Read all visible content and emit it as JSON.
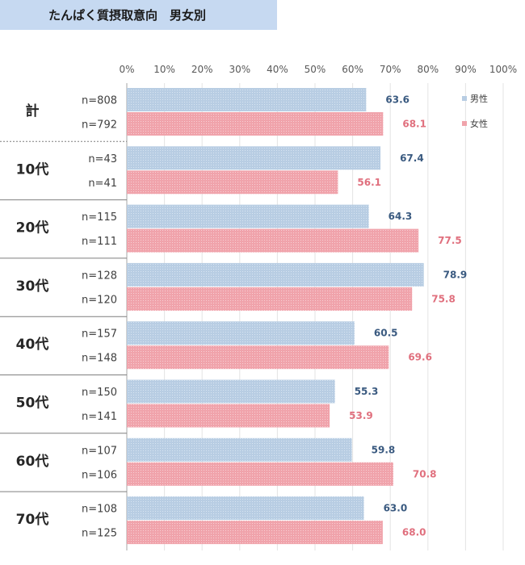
{
  "header": {
    "title": "たんぱく質摂取意向　男女別"
  },
  "chart_data": {
    "type": "bar",
    "orientation": "horizontal",
    "xlim": [
      0,
      100
    ],
    "ticks": [
      "0%",
      "10%",
      "20%",
      "30%",
      "40%",
      "50%",
      "60%",
      "70%",
      "80%",
      "90%",
      "100%"
    ],
    "grid": true,
    "legend_position": "top-right",
    "categories": [
      "計",
      "10代",
      "20代",
      "30代",
      "40代",
      "50代",
      "60代",
      "70代"
    ],
    "sample_sizes": {
      "男性": [
        "n=808",
        "n=43",
        "n=115",
        "n=128",
        "n=157",
        "n=150",
        "n=107",
        "n=108"
      ],
      "女性": [
        "n=792",
        "n=41",
        "n=111",
        "n=120",
        "n=148",
        "n=141",
        "n=106",
        "n=125"
      ]
    },
    "series": [
      {
        "name": "男性",
        "color": "#b8cde3",
        "label_color": "#3a5a80",
        "values": [
          63.6,
          67.4,
          64.3,
          78.9,
          60.5,
          55.3,
          59.8,
          63.0
        ],
        "labels": [
          "63.6",
          "67.4",
          "64.3",
          "78.9",
          "60.5",
          "55.3",
          "59.8",
          "63.0"
        ]
      },
      {
        "name": "女性",
        "color": "#f0a3ab",
        "label_color": "#e0707e",
        "values": [
          68.1,
          56.1,
          77.5,
          75.8,
          69.6,
          53.9,
          70.8,
          68.0
        ],
        "labels": [
          "68.1",
          "56.1",
          "77.5",
          "75.8",
          "69.6",
          "53.9",
          "70.8",
          "68.0"
        ]
      }
    ]
  }
}
